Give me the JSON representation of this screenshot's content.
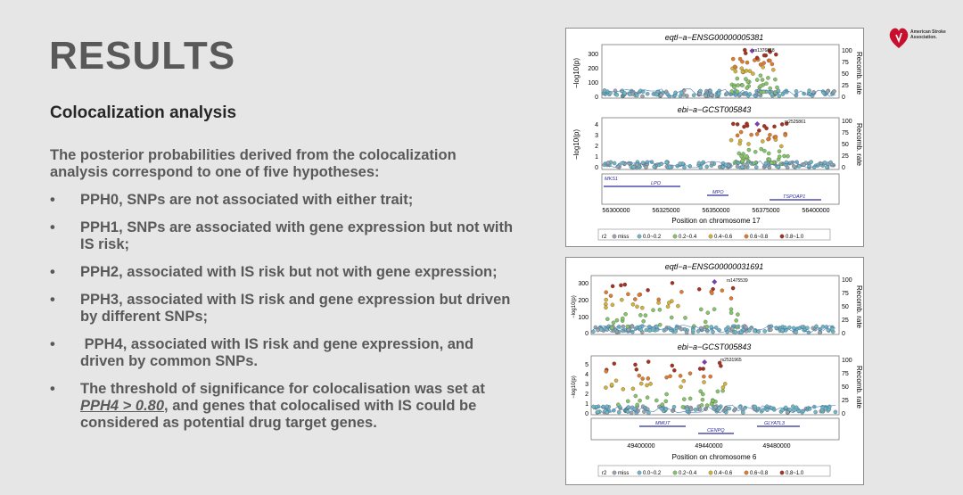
{
  "slide": {
    "title": "RESULTS",
    "subtitle": "Colocalization analysis",
    "intro": "The posterior probabilities derived from the colocalization analysis correspond to one of five hypotheses:",
    "bullets": [
      "PPH0, SNPs are not associated with either trait;",
      "PPH1, SNPs are associated with gene expression but not with IS risk;",
      "PPH2, associated with IS risk but not with gene expression;",
      "PPH3, associated with IS risk and gene expression but driven by different SNPs;",
      " PPH4, associated with IS risk and gene expression, and driven by common SNPs."
    ],
    "threshold": {
      "pre": "The threshold of significance for colocalisation was set at ",
      "emph": "PPH4 > 0.80",
      "post": ", and genes that colocalised with IS could be considered as potential drug target genes."
    },
    "bullet_char": "•"
  },
  "logo": {
    "text": "American Stroke Association.",
    "color": "#c8102e"
  },
  "legend": {
    "r2": "r2",
    "items": [
      "miss",
      "0.0~0.2",
      "0.2~0.4",
      "0.4~0.6",
      "0.6~0.8",
      "0.8~1.0"
    ],
    "colors": [
      "#9aa5b0",
      "#6fb7c9",
      "#86c46a",
      "#d4b13a",
      "#e07a2e",
      "#a8301f"
    ]
  },
  "panels": [
    {
      "top_title": "eqtl−a−ENSG00000005381",
      "bottom_title": "ebi−a−GCST005843",
      "top_yaxis": "−log10(p)",
      "bottom_yaxis": "−log10(p)",
      "recomb_label": "Recomb. rate",
      "top_yticks": [
        "0",
        "100",
        "200",
        "300"
      ],
      "bottom_yticks": [
        "0",
        "1",
        "2",
        "3",
        "4"
      ],
      "recomb_ticks": [
        "0",
        "25",
        "50",
        "75",
        "100"
      ],
      "top_snp": "rs1376818",
      "bottom_snp": "rs2525861",
      "genes": [
        "MKS1",
        "LPO",
        "MPO",
        "TSPOAP1"
      ],
      "xticks": [
        "56300000",
        "56325000",
        "56350000",
        "56375000",
        "56400000"
      ],
      "xlabel": "Position on chromosome 17"
    },
    {
      "top_title": "eqtl−a−ENSG00000031691",
      "bottom_title": "ebi−a−GCST005843",
      "top_yaxis": "−log10(p)",
      "bottom_yaxis": "−log10(p)",
      "recomb_label": "Recomb. rate",
      "top_yticks": [
        "0",
        "100",
        "200",
        "300"
      ],
      "bottom_yticks": [
        "0",
        "1",
        "2",
        "3",
        "4",
        "5"
      ],
      "recomb_ticks": [
        "0",
        "25",
        "50",
        "75",
        "100"
      ],
      "top_snp": "rs1475539",
      "bottom_snp": "rs2531965",
      "genes": [
        "MMUT",
        "CENPQ",
        "GLYATL3"
      ],
      "xticks": [
        "49400000",
        "49440000",
        "49480000"
      ],
      "xlabel": "Position on chromosome 6"
    }
  ]
}
